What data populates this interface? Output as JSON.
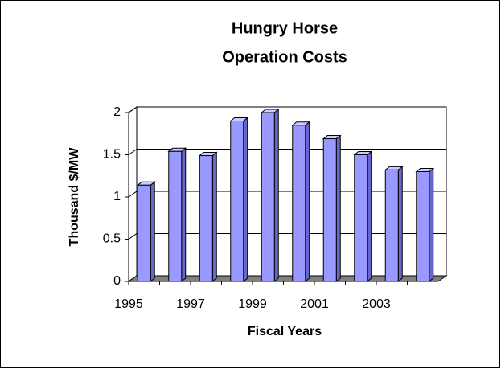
{
  "chart_data": {
    "type": "bar3d",
    "title": [
      "Hungry Horse",
      "Operation Costs"
    ],
    "x_label": "Fiscal Years",
    "y_label": "Thousand $/MW",
    "categories": [
      "1995",
      null,
      "1997",
      null,
      "1999",
      null,
      "2001",
      null,
      "2003",
      null
    ],
    "values": [
      1.14,
      1.54,
      1.49,
      1.9,
      2.0,
      1.85,
      1.69,
      1.5,
      1.32,
      1.3
    ],
    "color": "#9999ff",
    "ylim": [
      0,
      2
    ],
    "yticks": [
      0,
      0.5,
      1,
      1.5,
      2
    ],
    "grid": true
  }
}
